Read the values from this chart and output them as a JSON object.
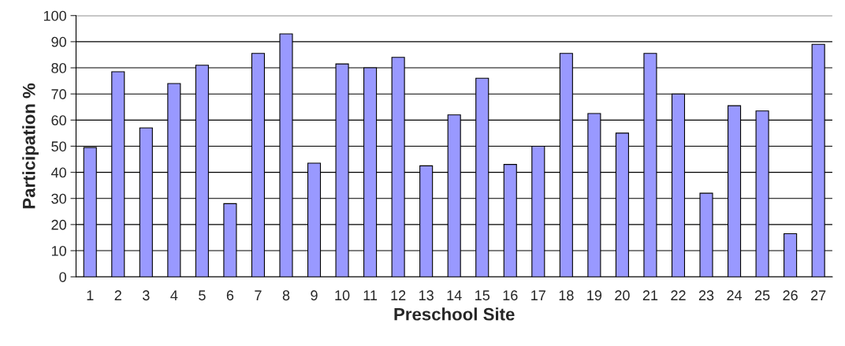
{
  "chart_data": {
    "type": "bar",
    "xlabel": "Preschool Site",
    "ylabel": "Participation %",
    "categories": [
      "1",
      "2",
      "3",
      "4",
      "5",
      "6",
      "7",
      "8",
      "9",
      "10",
      "11",
      "12",
      "13",
      "14",
      "15",
      "16",
      "17",
      "18",
      "19",
      "20",
      "21",
      "22",
      "23",
      "24",
      "25",
      "26",
      "27"
    ],
    "values": [
      49.5,
      78.5,
      57,
      74,
      81,
      28,
      85.5,
      93,
      43.5,
      81.5,
      80,
      84,
      42.5,
      62,
      76,
      43,
      50,
      85.5,
      62.5,
      55,
      85.5,
      70,
      32,
      65.5,
      63.5,
      16.5,
      89
    ],
    "color": "#9999ff",
    "ylim": [
      0,
      100
    ],
    "yticks": [
      0,
      10,
      20,
      30,
      40,
      50,
      60,
      70,
      80,
      90,
      100
    ],
    "grid": "y"
  }
}
